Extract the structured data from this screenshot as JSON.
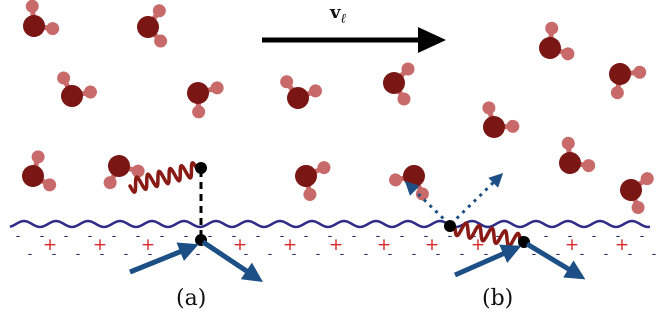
{
  "velocity": {
    "symbol": "v",
    "subscript": "ℓ"
  },
  "panels": [
    {
      "label": "(a)"
    },
    {
      "label": "(b)"
    }
  ],
  "charge_signs": {
    "positive": "+",
    "negative": "-"
  },
  "colors": {
    "oxygen": "#7a1613",
    "hydrogen": "#c96a6a",
    "surface_wave": "#2e2c86",
    "arrow_blue": "#1b4f86",
    "spring": "#8a1a14",
    "plus": "#d6282b",
    "minus": "#2a2a66",
    "black": "#000000"
  },
  "icons": {
    "water_molecule": "water-molecule-icon",
    "flow_arrow": "arrow-right-icon",
    "spring": "spring-icon"
  }
}
